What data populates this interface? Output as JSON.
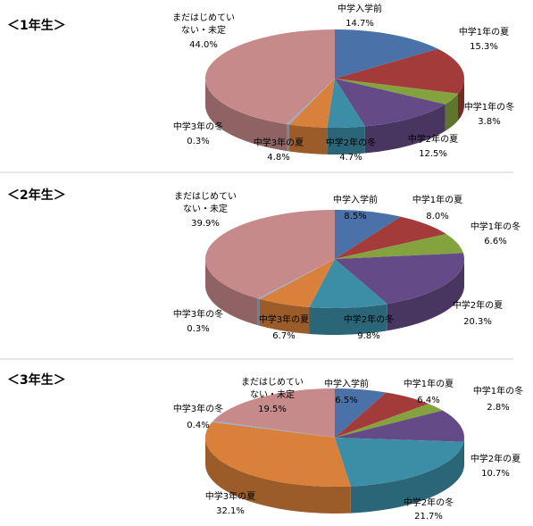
{
  "chart_data": [
    {
      "type": "pie",
      "title": "＜1年生＞",
      "categories": [
        "中学入学前",
        "中学1年の夏",
        "中学1年の冬",
        "中学2年の夏",
        "中学2年の冬",
        "中学3年の夏",
        "中学3年の冬",
        "まだはじめていない・未定"
      ],
      "values": [
        14.7,
        15.3,
        3.8,
        12.5,
        4.7,
        4.8,
        0.3,
        44.0
      ],
      "value_labels": [
        "14.7%",
        "15.3%",
        "3.8%",
        "12.5%",
        "4.7%",
        "4.8%",
        "0.3%",
        "44.0%"
      ],
      "colors": [
        "#4a72a8",
        "#a33b3a",
        "#84a33f",
        "#644a86",
        "#3b8ea5",
        "#d9803a",
        "#8fb0d6",
        "#c78a8a"
      ]
    },
    {
      "type": "pie",
      "title": "＜2年生＞",
      "categories": [
        "中学入学前",
        "中学1年の夏",
        "中学1年の冬",
        "中学2年の夏",
        "中学2年の冬",
        "中学3年の夏",
        "中学3年の冬",
        "まだはじめていない・未定"
      ],
      "values": [
        8.5,
        8.0,
        6.6,
        20.3,
        9.8,
        6.7,
        0.3,
        39.9
      ],
      "value_labels": [
        "8.5%",
        "8.0%",
        "6.6%",
        "20.3%",
        "9.8%",
        "6.7%",
        "0.3%",
        "39.9%"
      ],
      "colors": [
        "#4a72a8",
        "#a33b3a",
        "#84a33f",
        "#644a86",
        "#3b8ea5",
        "#d9803a",
        "#8fb0d6",
        "#c78a8a"
      ]
    },
    {
      "type": "pie",
      "title": "＜3年生＞",
      "categories": [
        "中学入学前",
        "中学1年の夏",
        "中学1年の冬",
        "中学2年の夏",
        "中学2年の冬",
        "中学3年の夏",
        "中学3年の冬",
        "まだはじめていない・未定"
      ],
      "values": [
        6.5,
        6.4,
        2.8,
        10.7,
        21.7,
        32.1,
        0.4,
        19.5
      ],
      "value_labels": [
        "6.5%",
        "6.4%",
        "2.8%",
        "10.7%",
        "21.7%",
        "32.1%",
        "0.4%",
        "19.5%"
      ],
      "colors": [
        "#4a72a8",
        "#a33b3a",
        "#84a33f",
        "#644a86",
        "#3b8ea5",
        "#d9803a",
        "#8fb0d6",
        "#c78a8a"
      ]
    }
  ]
}
